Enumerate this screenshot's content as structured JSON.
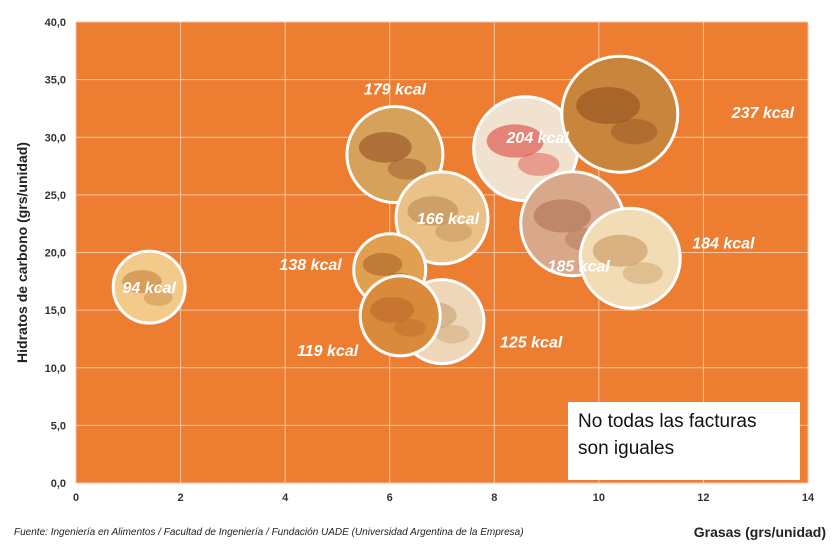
{
  "chart_data": {
    "type": "scatter",
    "xlabel": "Grasas (grs/unidad)",
    "ylabel": "Hidratos de carbono (grs/unidad)",
    "xlim": [
      0,
      14
    ],
    "ylim": [
      0,
      40
    ],
    "x_ticks": [
      "0",
      "2",
      "4",
      "6",
      "8",
      "10",
      "12",
      "14"
    ],
    "y_ticks": [
      "0,0",
      "5,0",
      "10,0",
      "15,0",
      "20,0",
      "25,0",
      "30,0",
      "35,0",
      "40,0"
    ],
    "grid": true,
    "plot_background": "#ED7D31",
    "grid_color": "#F6C6A4",
    "points": [
      {
        "x": 1.4,
        "y": 17.0,
        "label": "94 kcal"
      },
      {
        "x": 6.0,
        "y": 18.5,
        "label": "138 kcal"
      },
      {
        "x": 6.2,
        "y": 14.5,
        "label": "119 kcal"
      },
      {
        "x": 7.0,
        "y": 14.0,
        "label": "125 kcal"
      },
      {
        "x": 6.1,
        "y": 28.5,
        "label": "179 kcal"
      },
      {
        "x": 7.0,
        "y": 23.0,
        "label": "166 kcal"
      },
      {
        "x": 8.6,
        "y": 29.0,
        "label": "204 kcal"
      },
      {
        "x": 10.4,
        "y": 32.0,
        "label": "237 kcal"
      },
      {
        "x": 9.5,
        "y": 22.5,
        "label": "185 kcal"
      },
      {
        "x": 10.6,
        "y": 19.5,
        "label": "184 kcal"
      }
    ]
  },
  "note": {
    "line1": "No todas las facturas",
    "line2": "son iguales"
  },
  "source": "Fuente: Ingeniería en Alimentos / Facultad de Ingeniería  / Fundación UADE (Universidad Argentina de la Empresa)"
}
